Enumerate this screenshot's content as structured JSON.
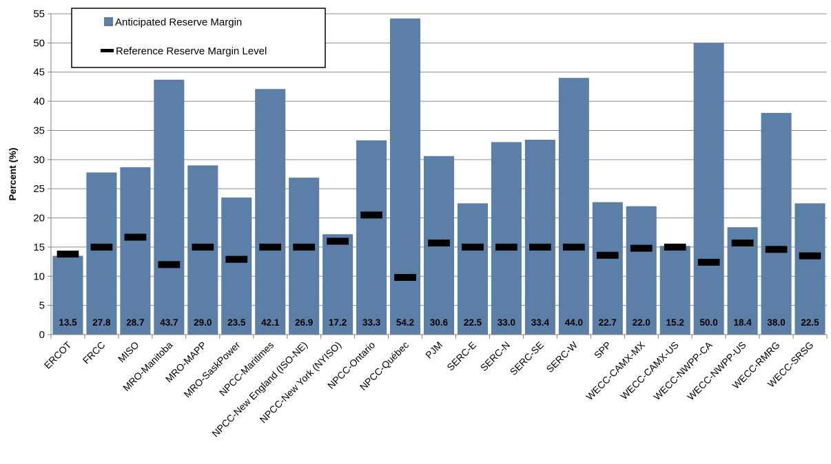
{
  "chart_data": {
    "type": "bar",
    "ylabel": "Percent (%)",
    "ylim": [
      0,
      55
    ],
    "yticks": [
      0,
      5,
      10,
      15,
      20,
      25,
      30,
      35,
      40,
      45,
      50,
      55
    ],
    "grid": true,
    "legend_position": "top-left",
    "categories": [
      "ERCOT",
      "FRCC",
      "MISO",
      "MRO-Manitoba",
      "MRO-MAPP",
      "MRO-SaskPower",
      "NPCC-Maritimes",
      "NPCC-New England (ISO-NE)",
      "NPCC-New York (NYISO)",
      "NPCC-Ontario",
      "NPCC-Québec",
      "PJM",
      "SERC-E",
      "SERC-N",
      "SERC-SE",
      "SERC-W",
      "SPP",
      "WECC-CAMX-MX",
      "WECC-CAMX-US",
      "WECC-NWPP-CA",
      "WECC-NWPP-US",
      "WECC-RMRG",
      "WECC-SRSG"
    ],
    "series": [
      {
        "name": "Anticipated Reserve Margin",
        "kind": "bar",
        "color": "#5b7fa6",
        "values": [
          13.5,
          27.8,
          28.7,
          43.7,
          29.0,
          23.5,
          42.1,
          26.9,
          17.2,
          33.3,
          54.2,
          30.6,
          22.5,
          33.0,
          33.4,
          44.0,
          22.7,
          22.0,
          15.2,
          50.0,
          18.4,
          38.0,
          22.5
        ],
        "value_labels": [
          "13.5",
          "27.8",
          "28.7",
          "43.7",
          "29.0",
          "23.5",
          "42.1",
          "26.9",
          "17.2",
          "33.3",
          "54.2",
          "30.6",
          "22.5",
          "33.0",
          "33.4",
          "44.0",
          "22.7",
          "22.0",
          "15.2",
          "50.0",
          "18.4",
          "38.0",
          "22.5"
        ]
      },
      {
        "name": "Reference Reserve Margin Level",
        "kind": "marker",
        "color": "#000000",
        "values": [
          13.8,
          15.0,
          16.7,
          12.0,
          15.0,
          12.9,
          15.0,
          15.0,
          16.0,
          20.5,
          9.8,
          15.7,
          15.0,
          15.0,
          15.0,
          15.0,
          13.6,
          14.8,
          15.0,
          12.4,
          15.7,
          14.6,
          13.5
        ]
      }
    ]
  }
}
